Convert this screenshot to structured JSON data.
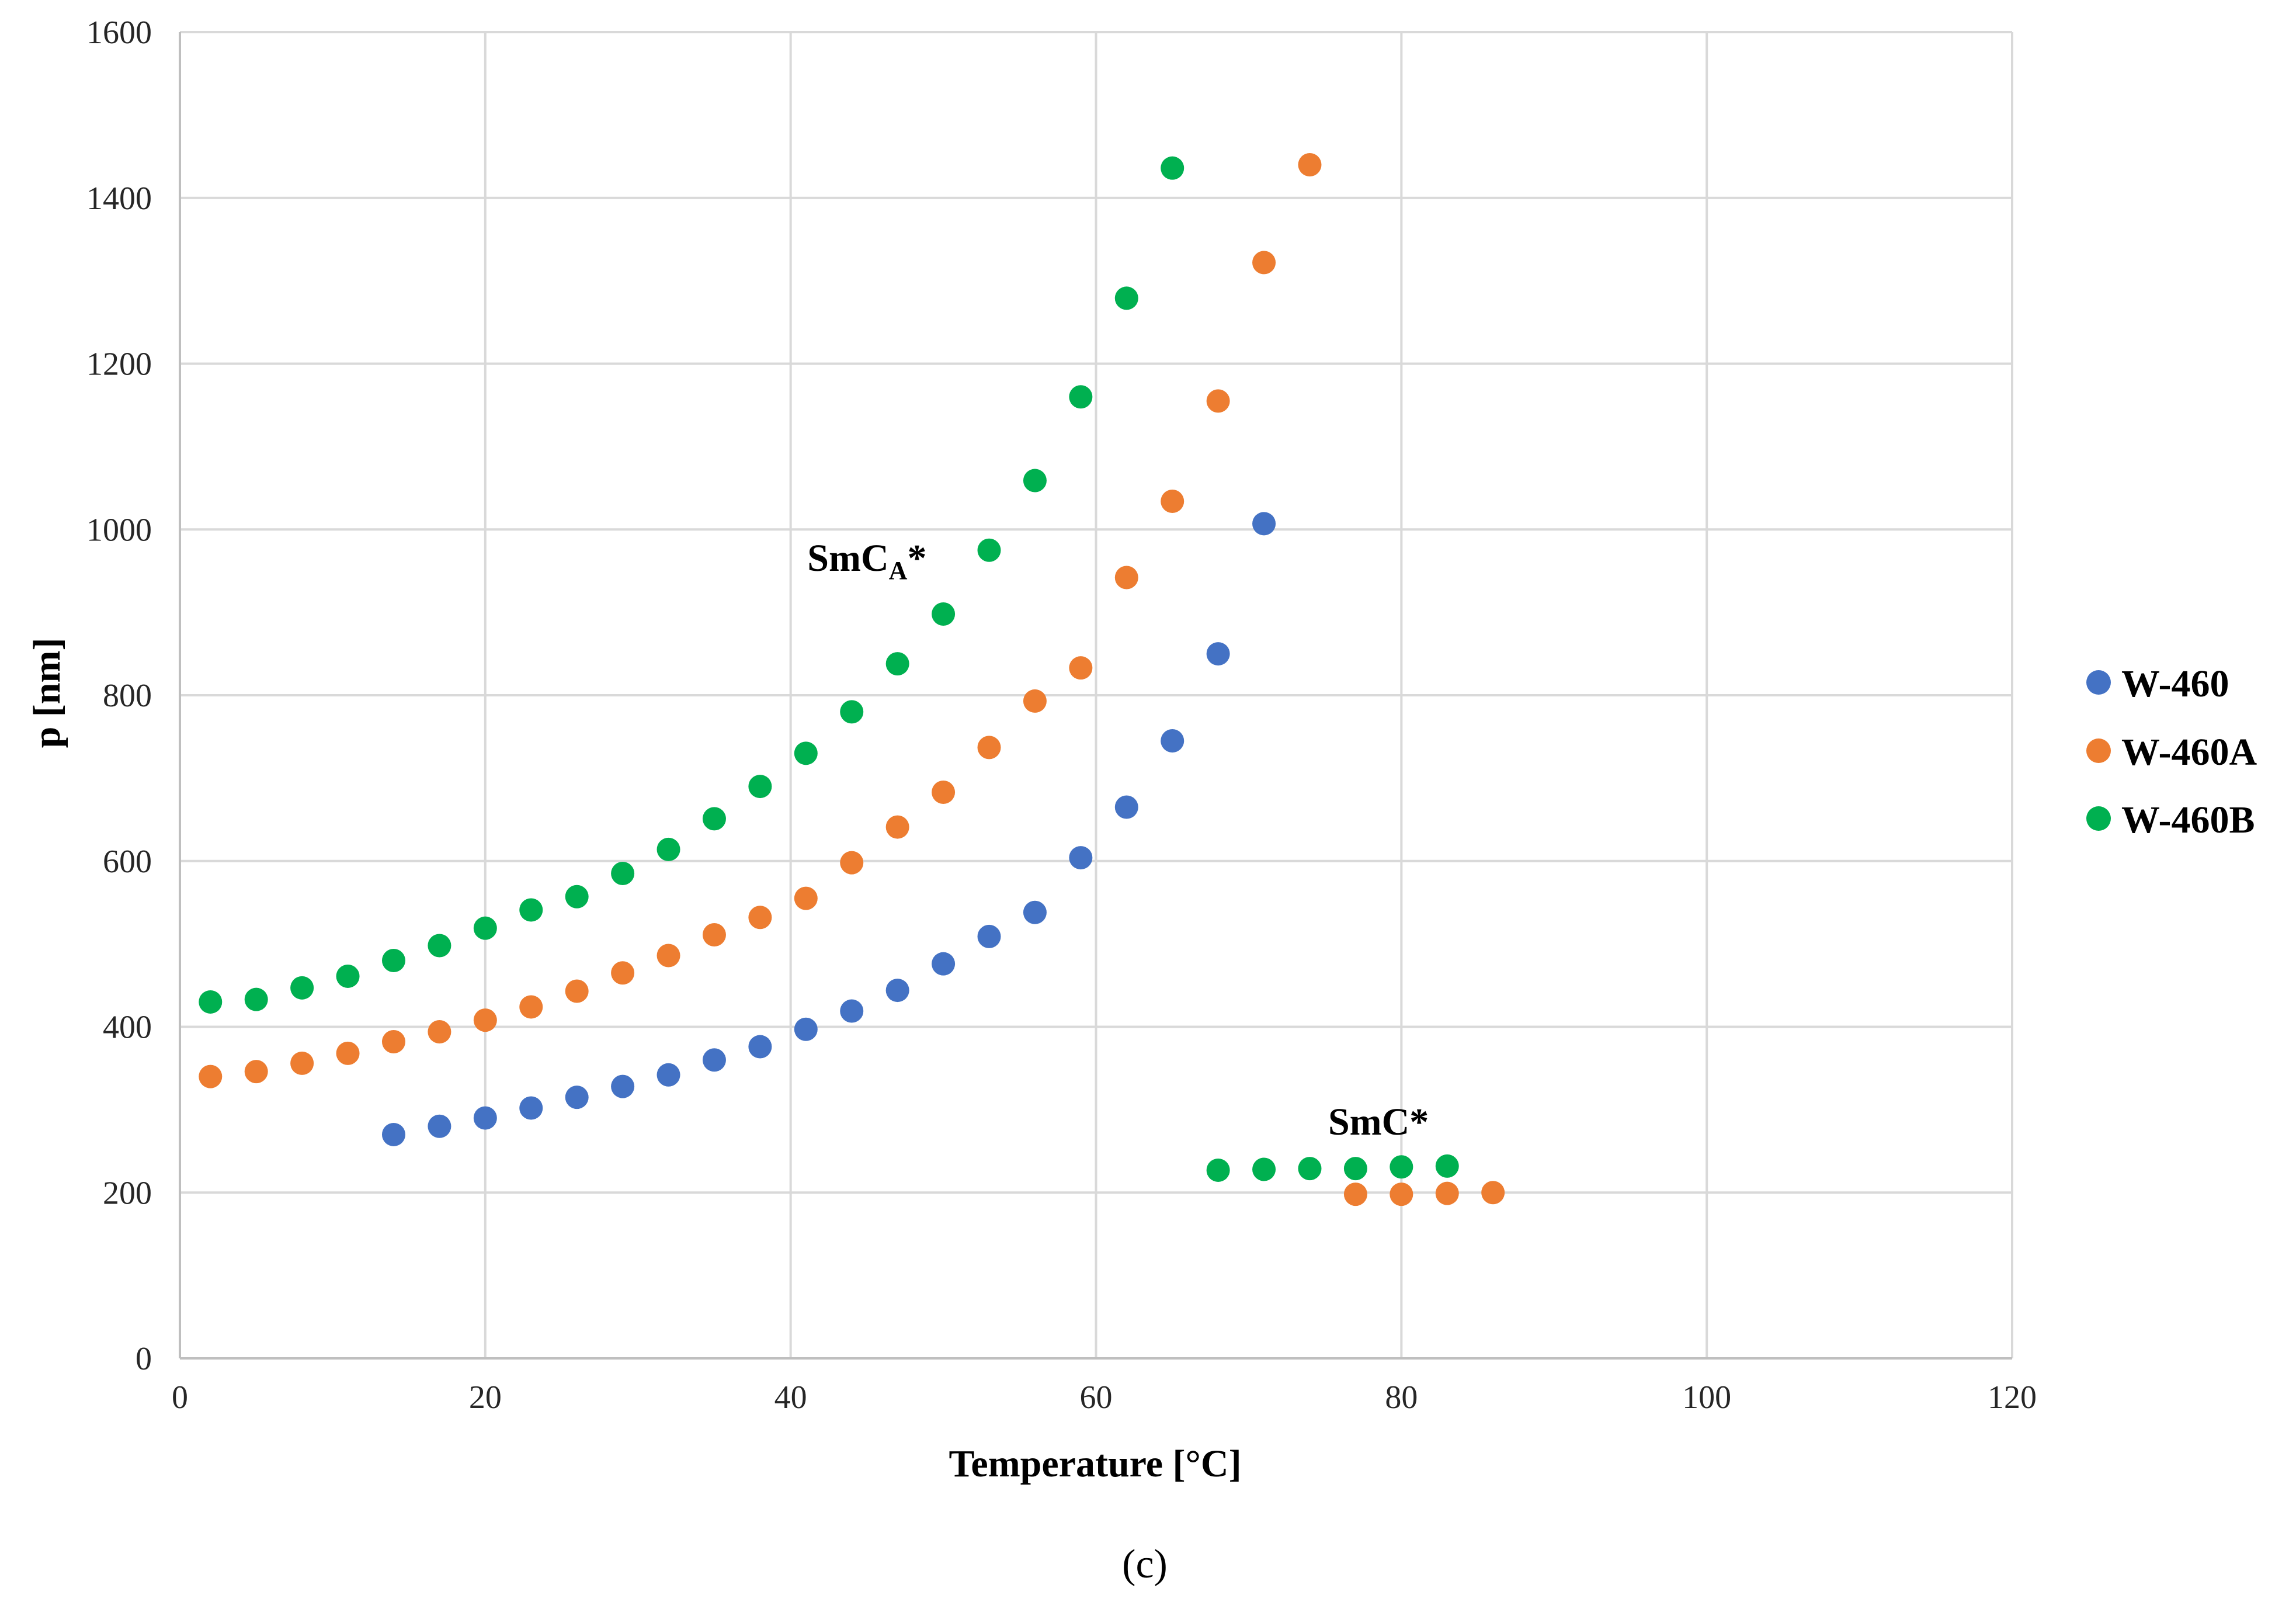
{
  "chart_data": {
    "type": "scatter",
    "title": "",
    "xlabel": "Temperature [°C]",
    "ylabel": "p [nm]",
    "xlim": [
      0,
      120
    ],
    "ylim": [
      0,
      1600
    ],
    "xticks": [
      0,
      20,
      40,
      60,
      80,
      100,
      120
    ],
    "yticks": [
      0,
      200,
      400,
      600,
      800,
      1000,
      1200,
      1400,
      1600
    ],
    "grid": true,
    "legend_position": "right",
    "caption": "(c)",
    "annotations": [
      {
        "base": "SmC",
        "sub": "A",
        "suffix": "*",
        "x": 45,
        "y": 950
      },
      {
        "base": "SmC*",
        "sub": "",
        "suffix": "",
        "x": 78.5,
        "y": 270
      }
    ],
    "series": [
      {
        "name": "W-460",
        "color": "#4472C4",
        "x": [
          14,
          17,
          20,
          23,
          26,
          29,
          32,
          35,
          38,
          41,
          44,
          47,
          50,
          53,
          56,
          59,
          62,
          65,
          68,
          71
        ],
        "y": [
          270,
          280,
          290,
          302,
          315,
          328,
          342,
          360,
          376,
          397,
          419,
          444,
          476,
          509,
          538,
          604,
          665,
          745,
          850,
          1007
        ]
      },
      {
        "name": "W-460A",
        "color": "#ED7D31",
        "x": [
          2,
          5,
          8,
          11,
          14,
          17,
          20,
          23,
          26,
          29,
          32,
          35,
          38,
          41,
          44,
          47,
          50,
          53,
          56,
          59,
          62,
          65,
          68,
          71,
          74,
          77,
          80,
          83,
          86
        ],
        "y": [
          340,
          346,
          356,
          368,
          382,
          394,
          408,
          424,
          443,
          465,
          486,
          511,
          532,
          555,
          598,
          641,
          683,
          737,
          793,
          833,
          942,
          1034,
          1155,
          1322,
          1440,
          198,
          198,
          199,
          200
        ]
      },
      {
        "name": "W-460B",
        "color": "#00B050",
        "x": [
          2,
          5,
          8,
          11,
          14,
          17,
          20,
          23,
          26,
          29,
          32,
          35,
          38,
          41,
          44,
          47,
          50,
          53,
          56,
          59,
          62,
          65,
          68,
          71,
          74,
          77,
          80,
          83
        ],
        "y": [
          430,
          433,
          447,
          461,
          480,
          498,
          519,
          541,
          557,
          585,
          614,
          651,
          690,
          730,
          780,
          838,
          898,
          975,
          1059,
          1160,
          1279,
          1436,
          227,
          228,
          229,
          229,
          231,
          232
        ]
      }
    ]
  }
}
